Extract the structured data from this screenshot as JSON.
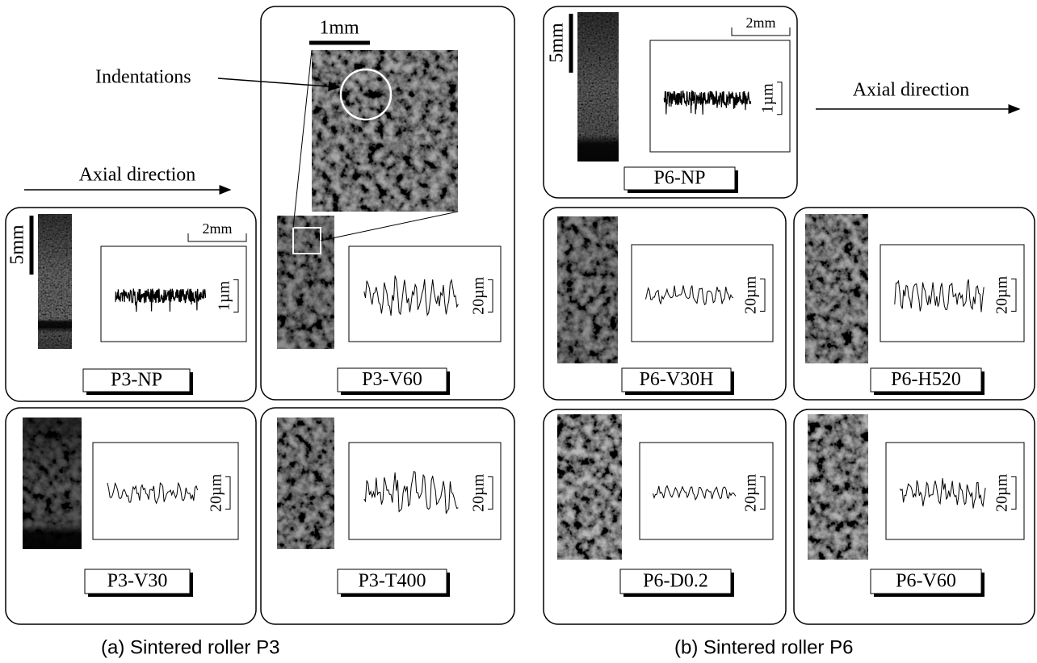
{
  "left": {
    "axial_direction": "Axial direction",
    "indentations": "Indentations",
    "zoom_scale": "1mm",
    "caption": "(a)  Sintered roller P3",
    "panels": [
      {
        "label": "P3-NP",
        "length_scale": "5mm",
        "width_scale": "2mm",
        "height_scale": "1µm"
      },
      {
        "label": "P3-V60",
        "height_scale": "20µm"
      },
      {
        "label": "P3-V30",
        "height_scale": "20µm"
      },
      {
        "label": "P3-T400",
        "height_scale": "20µm"
      }
    ]
  },
  "right": {
    "axial_direction": "Axial direction",
    "caption": "(b)  Sintered roller P6",
    "panels": [
      {
        "label": "P6-NP",
        "length_scale": "5mm",
        "width_scale": "2mm",
        "height_scale": "1µm"
      },
      {
        "label": "P6-V30H",
        "height_scale": "20µm"
      },
      {
        "label": "P6-H520",
        "height_scale": "20µm"
      },
      {
        "label": "P6-D0.2",
        "height_scale": "20µm"
      },
      {
        "label": "P6-V60",
        "height_scale": "20µm"
      }
    ]
  }
}
